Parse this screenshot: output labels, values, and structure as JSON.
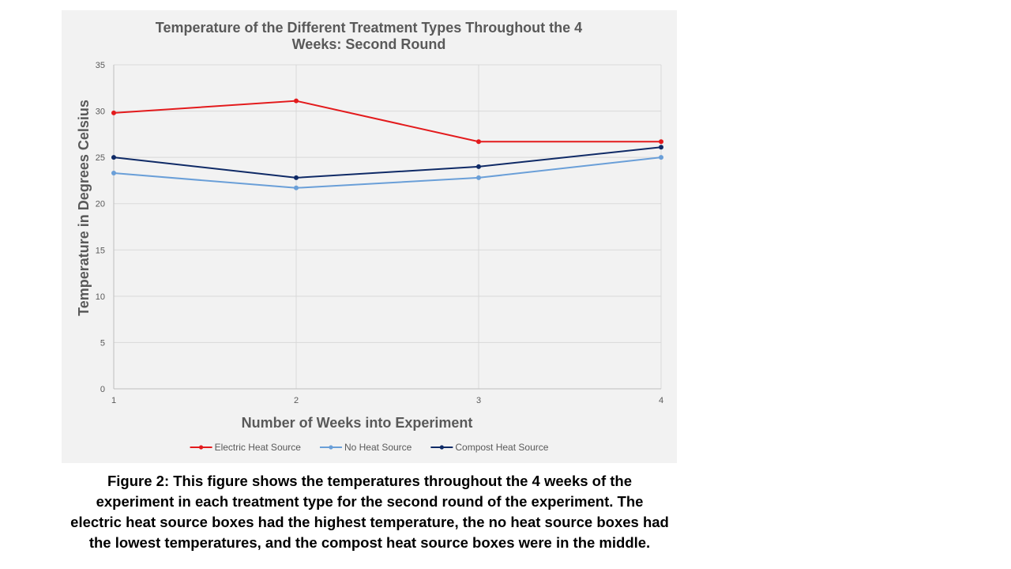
{
  "chart_data": {
    "type": "line",
    "title": [
      "Temperature of the Different Treatment Types Throughout the 4",
      "Weeks: Second Round"
    ],
    "xlabel": "Number of Weeks into Experiment",
    "ylabel": "Temperature in Degrees Celsius",
    "x": [
      1,
      2,
      3,
      4
    ],
    "x_tick_labels": [
      "1",
      "2",
      "3",
      "4"
    ],
    "ylim": [
      0,
      35
    ],
    "y_ticks": [
      0,
      5,
      10,
      15,
      20,
      25,
      30,
      35
    ],
    "grid": true,
    "legend_position": "bottom",
    "series": [
      {
        "name": "Electric Heat Source",
        "values": [
          29.8,
          31.1,
          26.7,
          26.7
        ],
        "color": "#e31a1c"
      },
      {
        "name": "No Heat Source",
        "values": [
          23.3,
          21.7,
          22.8,
          25.0
        ],
        "color": "#6a9fd8"
      },
      {
        "name": "Compost Heat Source",
        "values": [
          25.0,
          22.8,
          24.0,
          26.1
        ],
        "color": "#0f2a66"
      }
    ]
  },
  "caption": {
    "lines": [
      "Figure 2:  This figure shows the temperatures throughout the 4 weeks of the",
      "experiment in each treatment type for the second round of the experiment.  The",
      "electric heat source boxes had the highest temperature, the no heat source boxes had",
      "the lowest temperatures, and the compost heat source boxes were in the middle."
    ]
  }
}
